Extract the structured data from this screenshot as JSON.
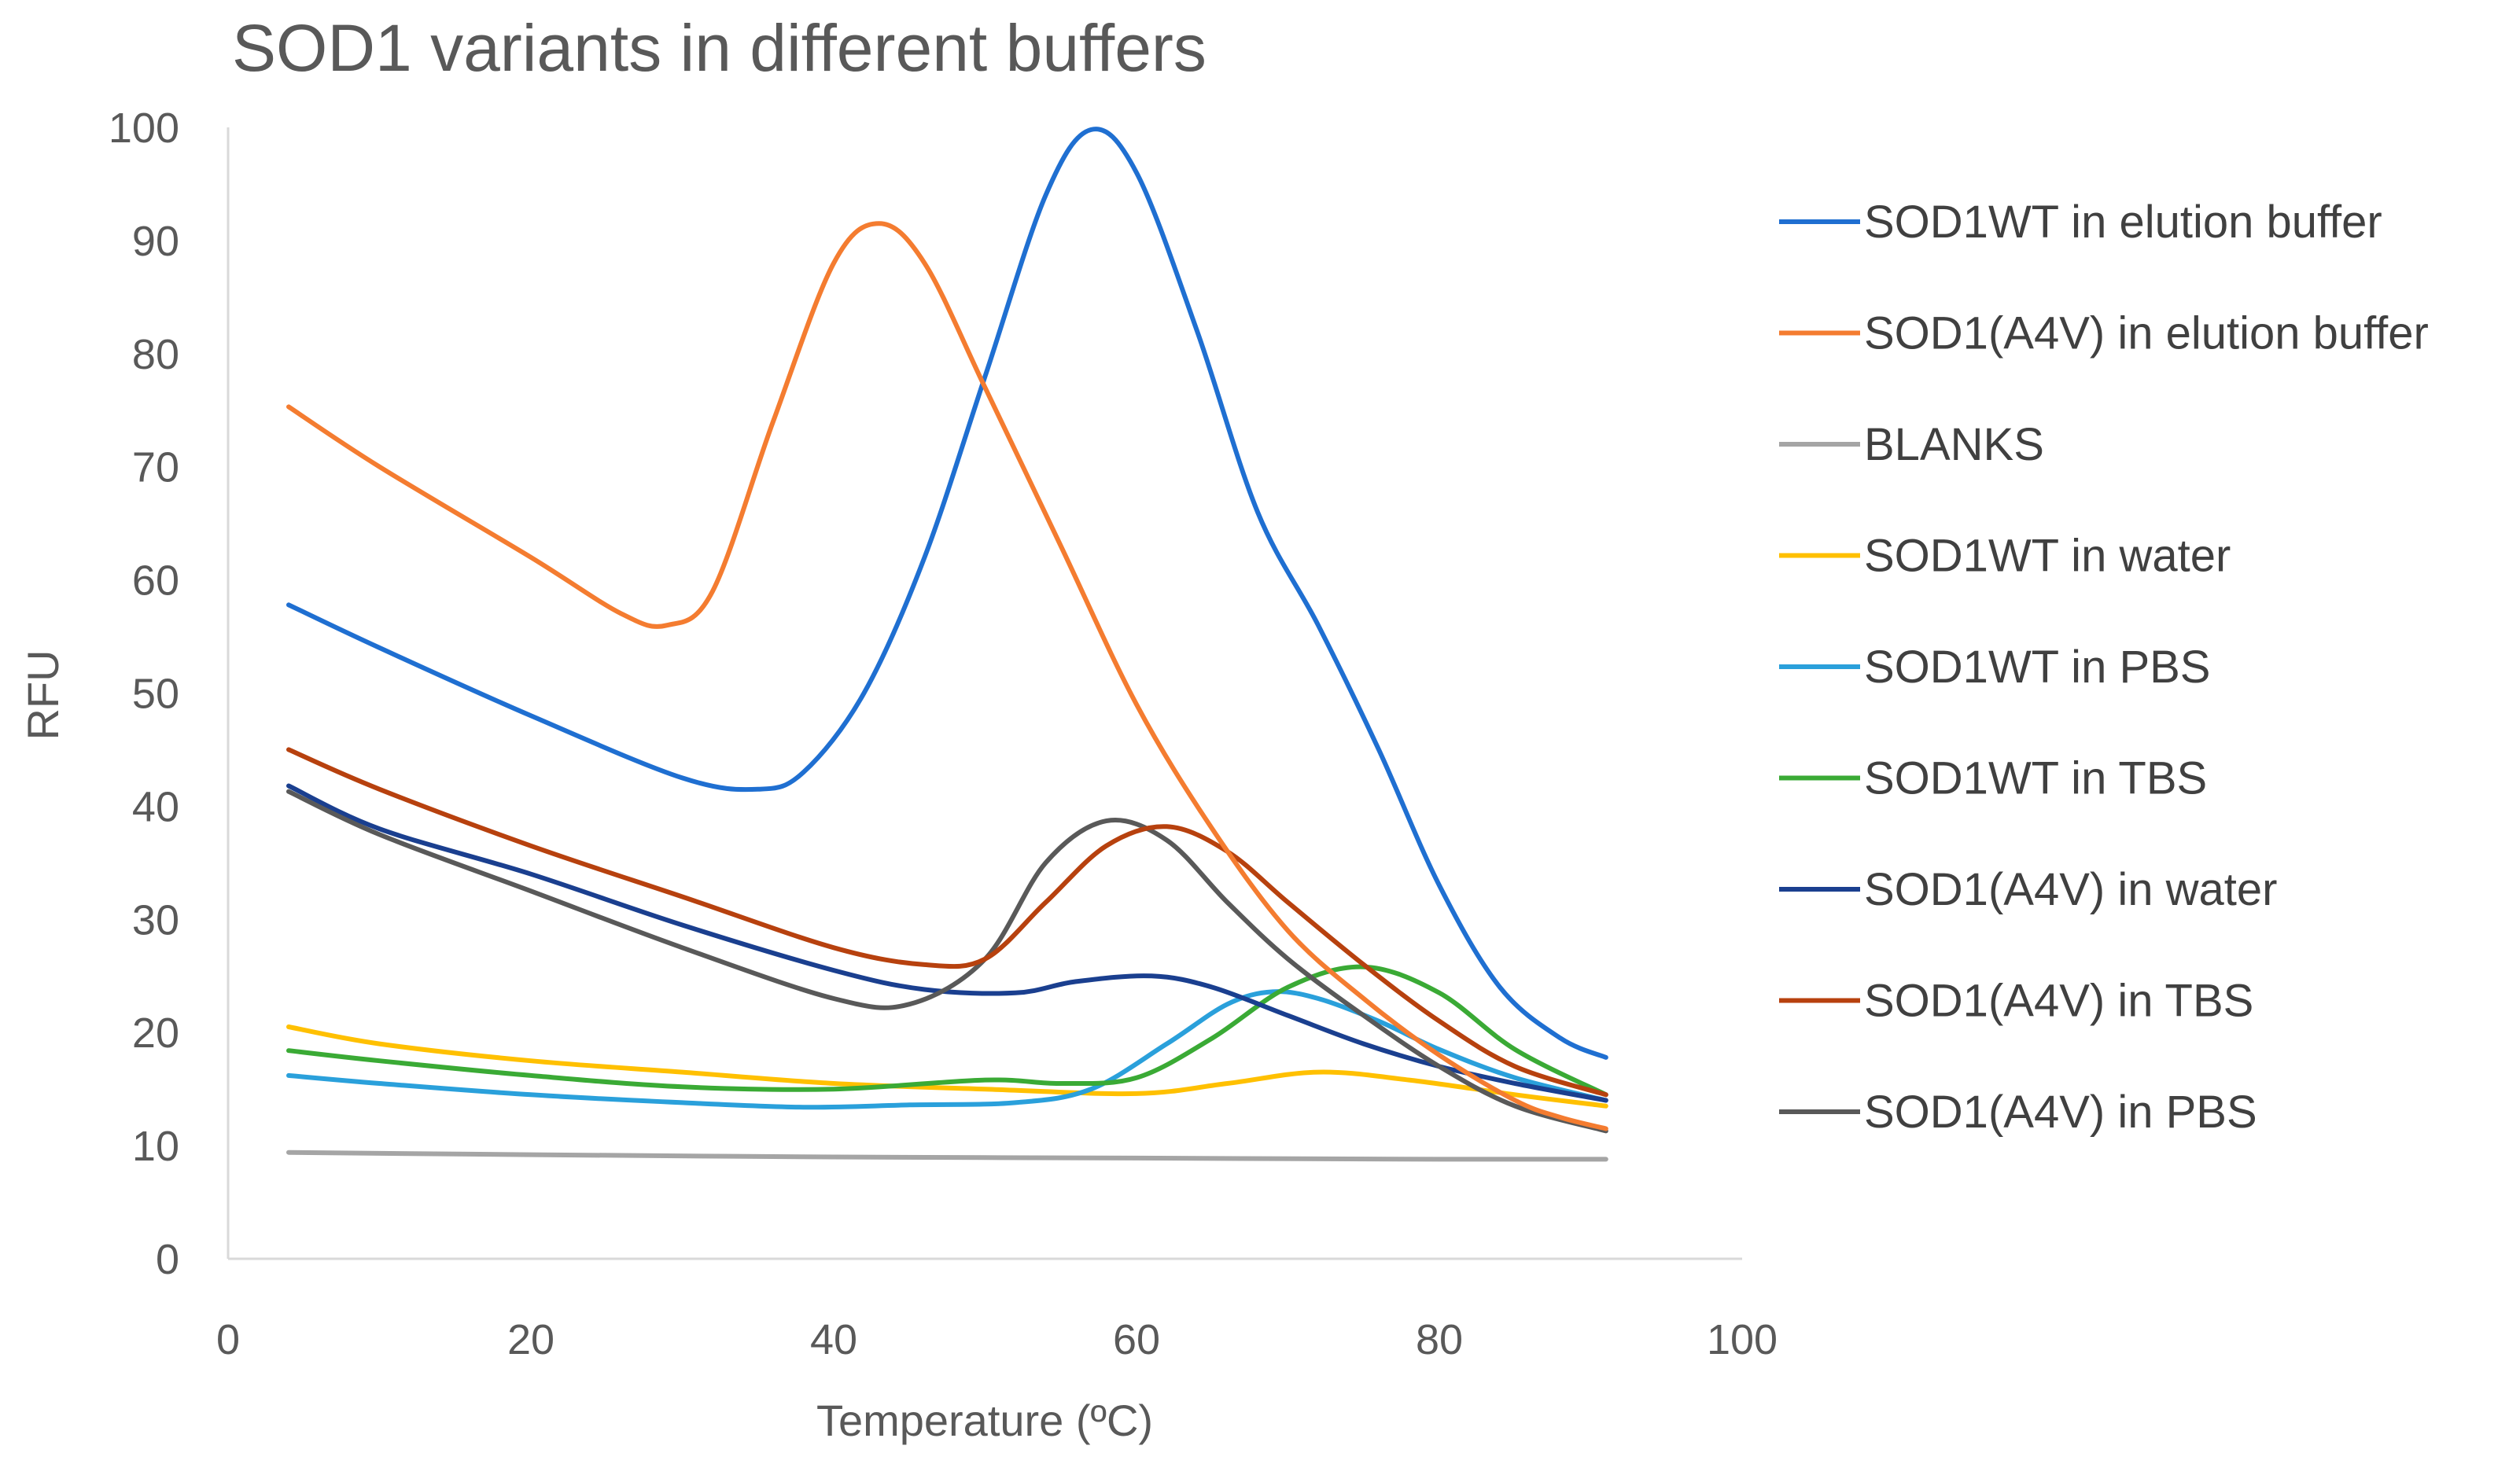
{
  "chart_data": {
    "type": "line",
    "title": "SOD1 variants in different buffers",
    "xlabel": "Temperature (ºC)",
    "ylabel": "RFU",
    "xlim": [
      0,
      100
    ],
    "ylim": [
      0,
      100
    ],
    "xticks": [
      0,
      20,
      40,
      60,
      80,
      100
    ],
    "yticks": [
      0,
      10,
      20,
      30,
      40,
      50,
      60,
      70,
      80,
      90,
      100
    ],
    "grid": false,
    "legend_position": "right",
    "series": [
      {
        "name": "SOD1WT in elution buffer",
        "color": "#1f6fd1",
        "x": [
          4,
          10,
          20,
          30,
          35,
          38,
          42,
          46,
          50,
          54,
          57,
          60,
          64,
          68,
          72,
          76,
          80,
          84,
          88,
          91
        ],
        "y": [
          57.8,
          54,
          48,
          42.5,
          41.5,
          43,
          50,
          62,
          78,
          94,
          99.8,
          96,
          82,
          66,
          56,
          45,
          33,
          24,
          19.5,
          17.8
        ]
      },
      {
        "name": "SOD1(A4V) in elution buffer",
        "color": "#f47c30",
        "x": [
          4,
          10,
          20,
          26,
          29,
          32,
          36,
          40,
          43,
          46,
          50,
          55,
          60,
          65,
          70,
          75,
          80,
          85,
          88,
          91
        ],
        "y": [
          75.3,
          70,
          62,
          57,
          56,
          59,
          74,
          88,
          91.5,
          88,
          77,
          63,
          49,
          38,
          29,
          23,
          18,
          14,
          12.5,
          11.5
        ]
      },
      {
        "name": "BLANKS",
        "color": "#a5a5a5",
        "x": [
          4,
          20,
          40,
          60,
          80,
          91
        ],
        "y": [
          9.4,
          9.2,
          9.0,
          8.9,
          8.8,
          8.8
        ]
      },
      {
        "name": "SOD1WT in water",
        "color": "#ffc000",
        "x": [
          4,
          10,
          20,
          30,
          40,
          50,
          60,
          66,
          72,
          78,
          85,
          91
        ],
        "y": [
          20.5,
          19,
          17.5,
          16.5,
          15.5,
          15,
          14.6,
          15.5,
          16.5,
          15.8,
          14.5,
          13.5
        ]
      },
      {
        "name": "SOD1WT in PBS",
        "color": "#2aa0db",
        "x": [
          4,
          10,
          20,
          30,
          38,
          45,
          52,
          57,
          62,
          66,
          69,
          72,
          76,
          80,
          85,
          91
        ],
        "y": [
          16.2,
          15.5,
          14.5,
          13.8,
          13.4,
          13.6,
          13.8,
          15,
          19,
          22.5,
          23.6,
          23,
          21,
          18.5,
          16,
          14
        ]
      },
      {
        "name": "SOD1WT in TBS",
        "color": "#3aaa35",
        "x": [
          4,
          10,
          20,
          30,
          40,
          50,
          55,
          60,
          65,
          70,
          75,
          80,
          85,
          91
        ],
        "y": [
          18.4,
          17.5,
          16.2,
          15.2,
          15,
          15.8,
          15.5,
          16,
          19.5,
          24,
          25.8,
          23.5,
          18.5,
          14.5
        ]
      },
      {
        "name": "SOD1(A4V) in water",
        "color": "#1a3f8f",
        "x": [
          4,
          10,
          20,
          30,
          40,
          46,
          52,
          56,
          61,
          65,
          70,
          75,
          80,
          85,
          91
        ],
        "y": [
          41.8,
          38,
          34,
          29.5,
          25.5,
          23.8,
          23.5,
          24.5,
          25,
          24,
          21.5,
          19,
          17,
          15.5,
          14
        ]
      },
      {
        "name": "SOD1(A4V) in TBS",
        "color": "#b7410e",
        "x": [
          4,
          10,
          20,
          30,
          40,
          46,
          50,
          54,
          58,
          62,
          66,
          70,
          75,
          80,
          85,
          91
        ],
        "y": [
          45,
          41.5,
          36.5,
          32,
          27.5,
          26,
          26.5,
          31.5,
          36.5,
          38.2,
          36,
          31.5,
          26,
          21,
          17,
          14.5
        ]
      },
      {
        "name": "SOD1(A4V) in PBS",
        "color": "#595959",
        "x": [
          4,
          10,
          20,
          30,
          40,
          45,
          50,
          54,
          58,
          62,
          66,
          70,
          75,
          80,
          85,
          91
        ],
        "y": [
          41.3,
          37.5,
          32.5,
          27.5,
          23,
          22.5,
          26.5,
          35,
          38.7,
          37,
          31.5,
          26.5,
          21.5,
          17,
          13.5,
          11.3
        ]
      }
    ]
  }
}
